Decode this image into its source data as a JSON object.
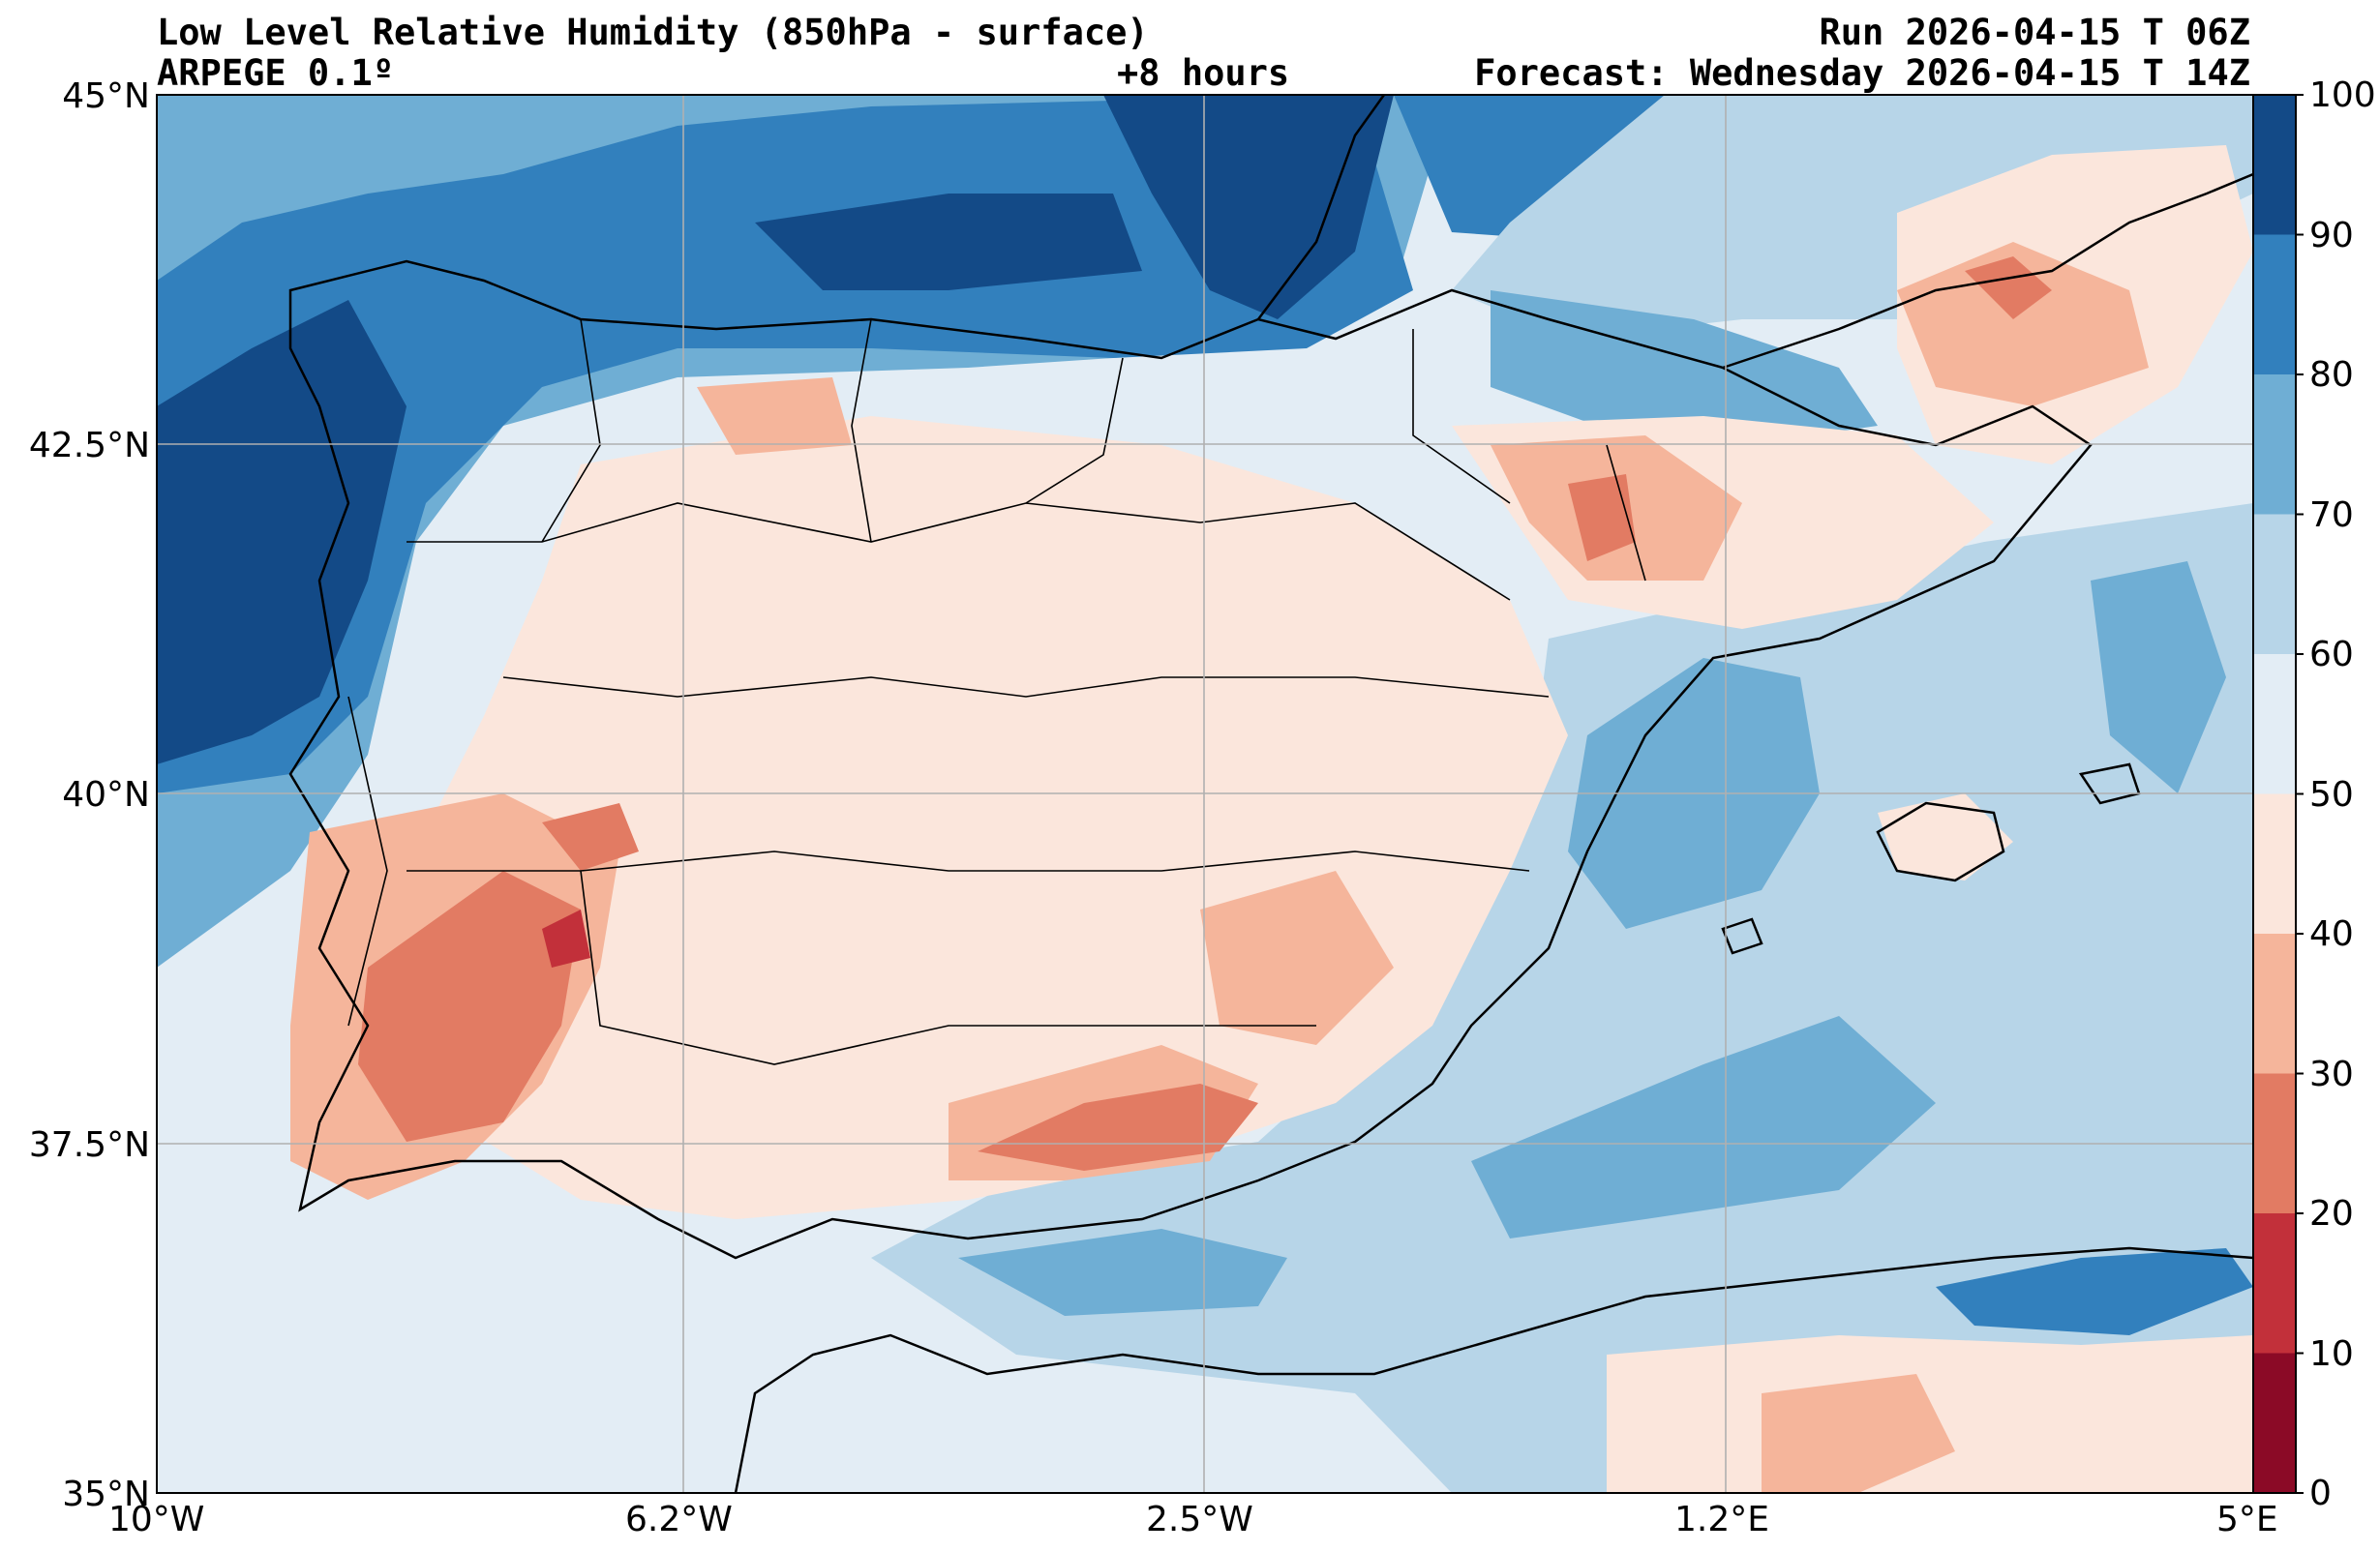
{
  "header": {
    "title_left": "Low Level Relative Humidity (850hPa - surface)",
    "subtitle_left": "ARPEGE 0.1º",
    "lead_time": "+8 hours",
    "run": "Run 2026-04-15 T 06Z",
    "forecast": "Forecast: Wednesday 2026-04-15 T 14Z"
  },
  "map": {
    "lon_ticks": [
      "10°W",
      "6.2°W",
      "2.5°W",
      "1.2°E",
      "5°E"
    ],
    "lat_ticks": [
      "45°N",
      "42.5°N",
      "40°N",
      "37.5°N",
      "35°N"
    ],
    "lon_range": [
      -10,
      5
    ],
    "lat_range": [
      35,
      45
    ],
    "grid": true
  },
  "colorbar": {
    "levels": [
      "0",
      "10",
      "20",
      "30",
      "40",
      "50",
      "60",
      "70",
      "80",
      "90",
      "100"
    ],
    "colors": [
      "#8b0a26",
      "#c2303a",
      "#e27b63",
      "#f5b59b",
      "#fbe6dc",
      "#e3edf5",
      "#b7d5e8",
      "#6faed4",
      "#3280bd",
      "#134a87"
    ]
  }
}
